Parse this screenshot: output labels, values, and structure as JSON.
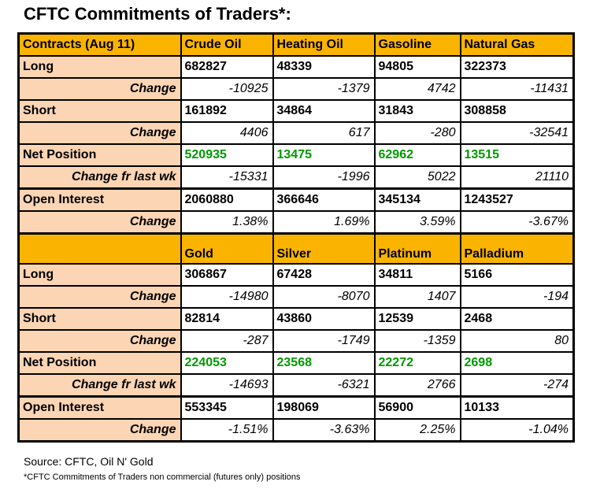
{
  "title": "CFTC Commitments of Traders*:",
  "colors": {
    "header_bg": "#FAB400",
    "label_bg": "#FCD5B4",
    "net_text": "#009900",
    "border": "#000000"
  },
  "chart_data": {
    "type": "table",
    "title": "CFTC Commitments of Traders*:",
    "sections": [
      {
        "header": {
          "label": "Contracts (Aug 11)",
          "columns": [
            "Crude Oil",
            "Heating Oil",
            "Gasoline",
            "Natural Gas"
          ],
          "tall": false
        },
        "rows": [
          {
            "label": "Long",
            "style": "main",
            "values": [
              "682827",
              "48339",
              "94805",
              "322373"
            ]
          },
          {
            "label": "Change",
            "style": "change",
            "values": [
              "-10925",
              "-1379",
              "4742",
              "-11431"
            ]
          },
          {
            "label": "Short",
            "style": "main",
            "values": [
              "161892",
              "34864",
              "31843",
              "308858"
            ]
          },
          {
            "label": "Change",
            "style": "change",
            "values": [
              "4406",
              "617",
              "-280",
              "-32541"
            ]
          },
          {
            "label": "Net Position",
            "style": "net",
            "values": [
              "520935",
              "13475",
              "62962",
              "13515"
            ]
          },
          {
            "label": "Change fr last wk",
            "style": "change",
            "values": [
              "-15331",
              "-1996",
              "5022",
              "21110"
            ]
          },
          {
            "label": "Open Interest",
            "style": "main",
            "thick_top": true,
            "values": [
              "2060880",
              "366646",
              "345134",
              "1243527"
            ]
          },
          {
            "label": "Change",
            "style": "change",
            "values": [
              "1.38%",
              "1.69%",
              "3.59%",
              "-3.67%"
            ]
          }
        ]
      },
      {
        "header": {
          "label": "",
          "columns": [
            "Gold",
            "Silver",
            "Platinum",
            "Palladium"
          ],
          "tall": true
        },
        "rows": [
          {
            "label": "Long",
            "style": "main",
            "values": [
              "306867",
              "67428",
              "34811",
              "5166"
            ]
          },
          {
            "label": "Change",
            "style": "change",
            "values": [
              "-14980",
              "-8070",
              "1407",
              "-194"
            ]
          },
          {
            "label": "Short",
            "style": "main",
            "values": [
              "82814",
              "43860",
              "12539",
              "2468"
            ]
          },
          {
            "label": "Change",
            "style": "change",
            "values": [
              "-287",
              "-1749",
              "-1359",
              "80"
            ]
          },
          {
            "label": "Net Position",
            "style": "net",
            "values": [
              "224053",
              "23568",
              "22272",
              "2698"
            ]
          },
          {
            "label": "Change fr last wk",
            "style": "change",
            "values": [
              "-14693",
              "-6321",
              "2766",
              "-274"
            ]
          },
          {
            "label": "Open Interest",
            "style": "main",
            "thick_top": true,
            "values": [
              "553345",
              "198069",
              "56900",
              "10133"
            ]
          },
          {
            "label": "Change",
            "style": "change",
            "values": [
              "-1.51%",
              "-3.63%",
              "2.25%",
              "-1.04%"
            ]
          }
        ]
      }
    ]
  },
  "footer": {
    "source": "Source: CFTC, Oil N' Gold",
    "footnote": "*CFTC Commitments of Traders non commercial (futures only) positions"
  }
}
